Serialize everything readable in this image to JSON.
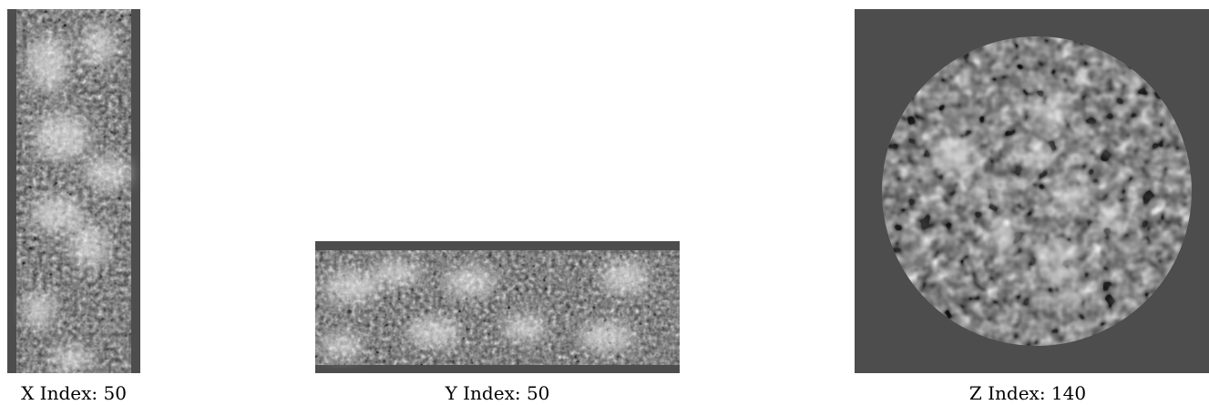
{
  "panels": [
    {
      "id": "x",
      "caption": "X Index: 50"
    },
    {
      "id": "y",
      "caption": "Y Index: 50"
    },
    {
      "id": "z",
      "caption": "Z Index: 140"
    }
  ],
  "colors": {
    "background": "#4d4d4d",
    "noise_dark": "#1e1e1e",
    "noise_light": "#e6e6e6"
  }
}
